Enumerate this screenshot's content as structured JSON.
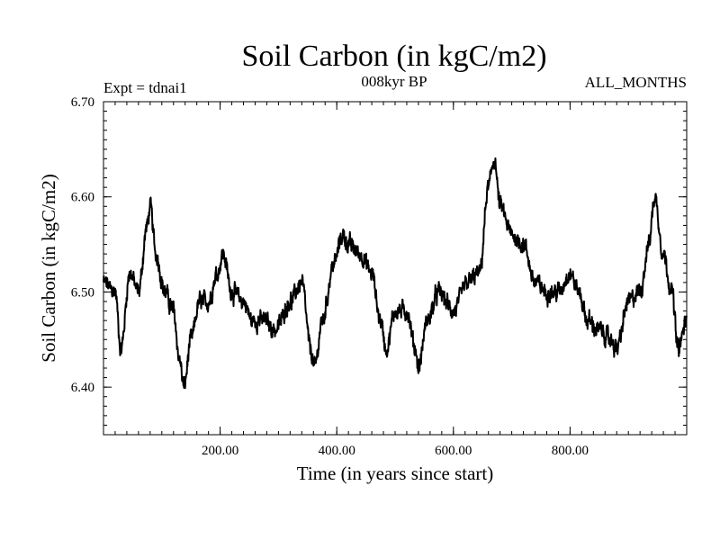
{
  "chart_data": {
    "type": "line",
    "title": "Soil Carbon (in kgC/m2)",
    "subtitle": "008kyr BP",
    "experiment_label": "Expt = tdnai1",
    "period_label": "ALL_MONTHS",
    "xlabel": "Time (in years since start)",
    "ylabel": "Soil Carbon (in kgC/m2)",
    "xlim": [
      0,
      1000
    ],
    "ylim": [
      6.35,
      6.7
    ],
    "x_ticks": [
      200,
      400,
      600,
      800
    ],
    "x_tick_labels": [
      "200.00",
      "400.00",
      "600.00",
      "800.00"
    ],
    "y_ticks": [
      6.4,
      6.5,
      6.6,
      6.7
    ],
    "y_tick_labels": [
      "6.40",
      "6.50",
      "6.60",
      "6.70"
    ],
    "grid": false,
    "series": [
      {
        "name": "Soil Carbon",
        "color": "#000000",
        "x": [
          0,
          20,
          30,
          45,
          60,
          75,
          80,
          90,
          105,
          120,
          130,
          138,
          150,
          165,
          180,
          195,
          205,
          220,
          240,
          255,
          275,
          295,
          320,
          340,
          355,
          362,
          375,
          395,
          410,
          420,
          440,
          460,
          475,
          485,
          500,
          520,
          535,
          540,
          555,
          575,
          600,
          625,
          645,
          660,
          670,
          680,
          700,
          720,
          740,
          760,
          780,
          800,
          815,
          830,
          850,
          870,
          880,
          900,
          920,
          935,
          945,
          960,
          975,
          985,
          1000
        ],
        "y": [
          6.51,
          6.5,
          6.44,
          6.52,
          6.5,
          6.57,
          6.59,
          6.54,
          6.5,
          6.48,
          6.43,
          6.4,
          6.45,
          6.49,
          6.49,
          6.52,
          6.54,
          6.5,
          6.49,
          6.47,
          6.47,
          6.46,
          6.49,
          6.51,
          6.44,
          6.42,
          6.47,
          6.53,
          6.56,
          6.55,
          6.54,
          6.52,
          6.47,
          6.44,
          6.48,
          6.48,
          6.44,
          6.42,
          6.47,
          6.5,
          6.48,
          6.51,
          6.52,
          6.61,
          6.64,
          6.59,
          6.56,
          6.55,
          6.51,
          6.5,
          6.5,
          6.52,
          6.5,
          6.47,
          6.46,
          6.45,
          6.44,
          6.49,
          6.5,
          6.55,
          6.6,
          6.54,
          6.5,
          6.44,
          6.47
        ]
      }
    ]
  }
}
